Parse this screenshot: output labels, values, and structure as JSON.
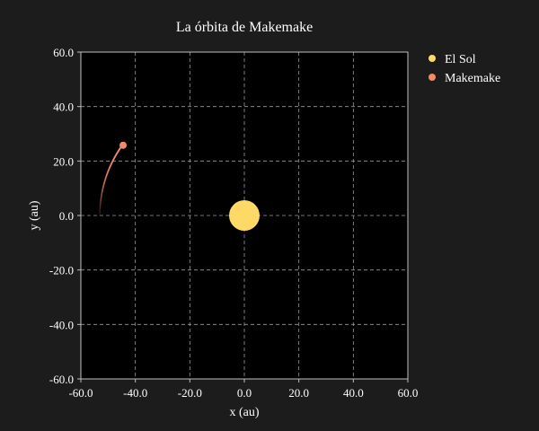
{
  "chart_data": {
    "type": "scatter",
    "title": "La órbita de Makemake",
    "xlabel": "x (au)",
    "ylabel": "y (au)",
    "xlim": [
      -60,
      60
    ],
    "ylim": [
      -60,
      60
    ],
    "xticks": [
      "-60.0",
      "-40.0",
      "-20.0",
      "0.0",
      "20.0",
      "40.0",
      "60.0"
    ],
    "yticks": [
      "60.0",
      "40.0",
      "20.0",
      "0.0",
      "-20.0",
      "-40.0",
      "-60.0"
    ],
    "grid": true,
    "legend_placement": "outside-top-right",
    "background": "#000000",
    "figure_background": "#1c1c1c",
    "series": [
      {
        "name": "El Sol",
        "color": "#ffd966",
        "points": [
          [
            0,
            0
          ]
        ]
      },
      {
        "name": "Makemake",
        "color": "#f4896b",
        "points": [
          [
            -44.5,
            25.8
          ]
        ]
      }
    ],
    "orbit": {
      "color": "#f4896b",
      "center": [
        -7.5,
        0.3
      ],
      "semi_major_axis": 45.5,
      "semi_minor_axis": 44.5,
      "start_angle_deg": 180,
      "fade": "trail fades from current position clockwise back to start"
    }
  }
}
